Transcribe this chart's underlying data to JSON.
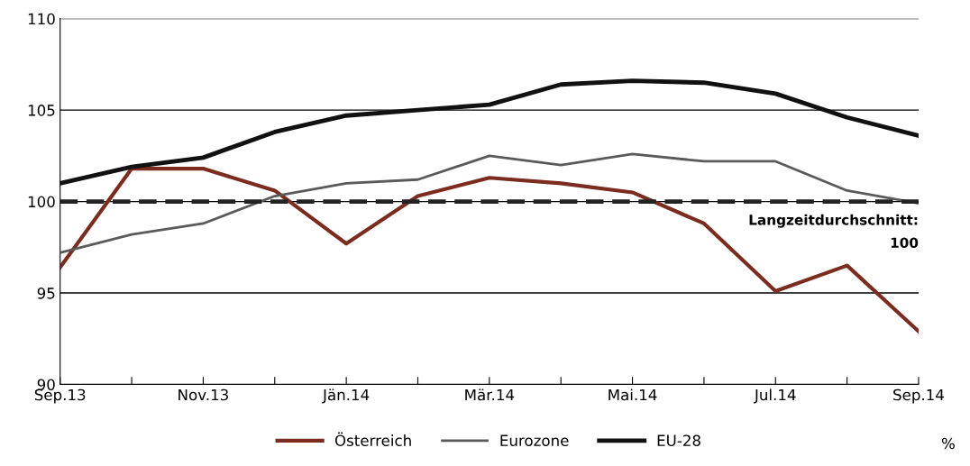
{
  "chart_data": {
    "type": "line",
    "categories": [
      "Sep.13",
      null,
      "Nov.13",
      null,
      "Jän.14",
      null,
      "Mär.14",
      null,
      "Mai.14",
      null,
      "Jul.14",
      null,
      "Sep.14"
    ],
    "series": [
      {
        "name": "Österreich",
        "color": "#7b2c1e",
        "values": [
          96.4,
          101.8,
          101.8,
          100.6,
          97.7,
          100.3,
          101.3,
          101.0,
          100.5,
          98.8,
          95.1,
          96.5,
          92.9
        ]
      },
      {
        "name": "Eurozone",
        "color": "#5a5a5a",
        "values": [
          97.2,
          98.2,
          98.8,
          100.3,
          101.0,
          101.2,
          102.5,
          102.0,
          102.6,
          102.2,
          102.2,
          100.6,
          99.9
        ]
      },
      {
        "name": "EU-28",
        "color": "#111111",
        "values": [
          101.0,
          101.9,
          102.4,
          103.8,
          104.7,
          105.0,
          105.3,
          106.4,
          106.6,
          106.5,
          105.9,
          104.6,
          103.6
        ]
      }
    ],
    "ylim": [
      90,
      110
    ],
    "yticks": [
      90,
      95,
      100,
      105,
      110
    ],
    "grid": "y",
    "legend": "bottom",
    "marker": "none",
    "line_style": "solid",
    "ref_lines": [
      {
        "axis": "y",
        "value": 100,
        "label": "Langzeitdurchschnitt:\n100",
        "color": "#222222",
        "line_style": "dashed"
      }
    ],
    "annotations": [
      "%"
    ]
  }
}
